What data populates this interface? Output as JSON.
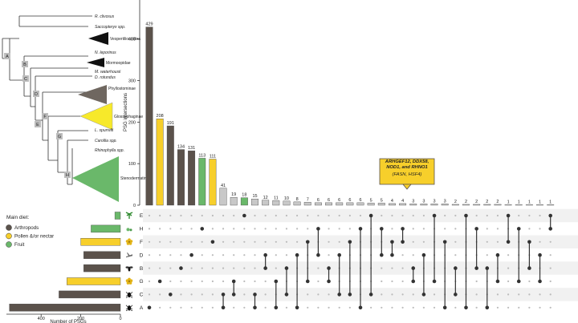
{
  "chart_data": {
    "type": "bar",
    "intersection_axis_label": "PSG intersections",
    "intersection_ticks": [
      0,
      100,
      200,
      300,
      400
    ],
    "intersection_ylim": [
      0,
      440
    ],
    "set_axis_label": "Number of PSGs",
    "set_ticks": [
      0,
      200,
      400
    ],
    "set_xlim": [
      0,
      575
    ],
    "diet_legend": {
      "title": "Main diet:",
      "items": [
        {
          "label": "Arthropods",
          "color": "#5b524b"
        },
        {
          "label": "Pollen &/or nectar",
          "color": "#f7cf2b"
        },
        {
          "label": "Fruit",
          "color": "#6ab86a"
        }
      ]
    },
    "sets": [
      {
        "name": "E",
        "size": 28,
        "diet": "fruit",
        "icon": "palm-tree-icon"
      },
      {
        "name": "H",
        "size": 148,
        "diet": "fruit",
        "icon": "fruit-icon"
      },
      {
        "name": "F",
        "size": 200,
        "diet": "pollen",
        "icon": "flower-icon"
      },
      {
        "name": "D",
        "size": 185,
        "diet": "arthropods",
        "icon": "grasshopper-icon"
      },
      {
        "name": "B",
        "size": 185,
        "diet": "arthropods",
        "icon": "fly-icon"
      },
      {
        "name": "G",
        "size": 270,
        "diet": "pollen",
        "icon": "flower-icon"
      },
      {
        "name": "C",
        "size": 310,
        "diet": "arthropods",
        "icon": "beetle-icon"
      },
      {
        "name": "A",
        "size": 560,
        "diet": "arthropods",
        "icon": "beetle-icon"
      }
    ],
    "intersections": [
      {
        "value": 429,
        "sets": [
          "A"
        ],
        "diet": "arthropods"
      },
      {
        "value": 208,
        "sets": [
          "G"
        ],
        "diet": "pollen"
      },
      {
        "value": 191,
        "sets": [
          "C"
        ],
        "diet": "arthropods"
      },
      {
        "value": 134,
        "sets": [
          "B"
        ],
        "diet": "arthropods"
      },
      {
        "value": 131,
        "sets": [
          "D"
        ],
        "diet": "arthropods"
      },
      {
        "value": 113,
        "sets": [
          "H"
        ],
        "diet": "fruit"
      },
      {
        "value": 111,
        "sets": [
          "F"
        ],
        "diet": "pollen"
      },
      {
        "value": 41,
        "sets": [
          "C",
          "A"
        ],
        "diet": "mixed"
      },
      {
        "value": 19,
        "sets": [
          "G",
          "C"
        ],
        "diet": "mixed"
      },
      {
        "value": 18,
        "sets": [
          "E"
        ],
        "diet": "fruit"
      },
      {
        "value": 15,
        "sets": [
          "C",
          "A"
        ],
        "diet": "mixed"
      },
      {
        "value": 12,
        "sets": [
          "D",
          "B"
        ],
        "diet": "mixed"
      },
      {
        "value": 11,
        "sets": [
          "G",
          "A"
        ],
        "diet": "mixed"
      },
      {
        "value": 10,
        "sets": [
          "B",
          "C"
        ],
        "diet": "mixed"
      },
      {
        "value": 8,
        "sets": [
          "D",
          "A"
        ],
        "diet": "mixed"
      },
      {
        "value": 7,
        "sets": [
          "F",
          "G"
        ],
        "diet": "mixed"
      },
      {
        "value": 6,
        "sets": [
          "H",
          "D"
        ],
        "diet": "mixed"
      },
      {
        "value": 6,
        "sets": [
          "B",
          "G"
        ],
        "diet": "mixed"
      },
      {
        "value": 6,
        "sets": [
          "D",
          "C"
        ],
        "diet": "mixed"
      },
      {
        "value": 6,
        "sets": [
          "F",
          "C"
        ],
        "diet": "mixed"
      },
      {
        "value": 6,
        "sets": [
          "H",
          "A"
        ],
        "diet": "mixed"
      },
      {
        "value": 5,
        "sets": [
          "E",
          "C"
        ],
        "diet": "mixed"
      },
      {
        "value": 5,
        "sets": [
          "H",
          "D"
        ],
        "diet": "mixed"
      },
      {
        "value": 4,
        "sets": [
          "F",
          "D"
        ],
        "diet": "mixed"
      },
      {
        "value": 4,
        "sets": [
          "H",
          "F"
        ],
        "diet": "mixed"
      },
      {
        "value": 3,
        "sets": [
          "B",
          "G"
        ],
        "diet": "mixed"
      },
      {
        "value": 3,
        "sets": [
          "D",
          "C"
        ],
        "diet": "mixed"
      },
      {
        "value": 3,
        "sets": [
          "E",
          "G"
        ],
        "diet": "mixed"
      },
      {
        "value": 3,
        "sets": [
          "F",
          "A"
        ],
        "diet": "mixed"
      },
      {
        "value": 2,
        "sets": [
          "B",
          "C"
        ],
        "diet": "mixed"
      },
      {
        "value": 2,
        "sets": [
          "E",
          "A"
        ],
        "diet": "mixed"
      },
      {
        "value": 2,
        "sets": [
          "H",
          "B"
        ],
        "diet": "mixed"
      },
      {
        "value": 2,
        "sets": [
          "B",
          "A"
        ],
        "diet": "mixed"
      },
      {
        "value": 2,
        "sets": [
          "D",
          "G"
        ],
        "diet": "mixed"
      },
      {
        "value": 1,
        "sets": [
          "E",
          "F"
        ],
        "diet": "mixed"
      },
      {
        "value": 1,
        "sets": [
          "H",
          "G"
        ],
        "diet": "mixed"
      },
      {
        "value": 1,
        "sets": [
          "F",
          "B"
        ],
        "diet": "mixed"
      },
      {
        "value": 1,
        "sets": [
          "D",
          "G"
        ],
        "diet": "mixed"
      },
      {
        "value": 1,
        "sets": [
          "E",
          "H"
        ],
        "diet": "mixed"
      }
    ],
    "colors": {
      "arthropods": "#5b524b",
      "pollen": "#f7cf2b",
      "fruit": "#6ab86a",
      "mixed": "#c8c8c8"
    },
    "callout": {
      "genes": "ARHGEF12, DDX58, NOD1, and RHNO1",
      "extra": "(FASN, HSF4)",
      "points_to_index": 24
    },
    "tree": {
      "taxa": [
        "R. clivosus",
        "Saccopteryx spp.",
        "Vespertilionoidea",
        "N. leporinus",
        "Mormoopidae",
        "M. waterhousii",
        "D. rotundus",
        "Phyllostominae",
        "Glossophaginae",
        "L. spurrelli",
        "Carollia spp.",
        "Rhinophylla spp.",
        "Stenodermatinae"
      ],
      "nodes": [
        "A",
        "B",
        "C",
        "D",
        "E",
        "F",
        "G",
        "H"
      ]
    }
  }
}
